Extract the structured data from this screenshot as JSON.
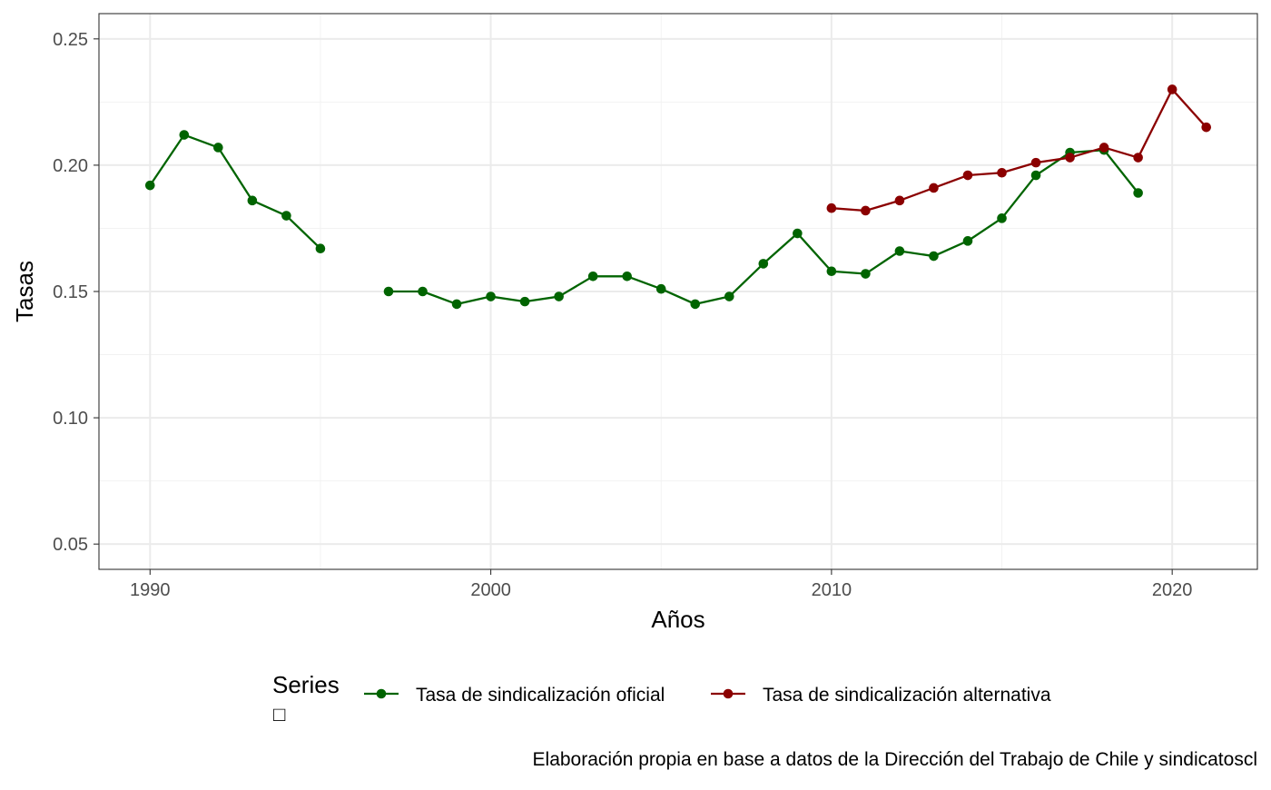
{
  "chart_data": {
    "type": "line",
    "xlabel": "Años",
    "ylabel": "Tasas",
    "xlim": [
      1988.5,
      2022.5
    ],
    "ylim": [
      0.04,
      0.26
    ],
    "x_ticks": [
      1990,
      2000,
      2010,
      2020
    ],
    "x_tick_labels": [
      "1990",
      "2000",
      "2010",
      "2020"
    ],
    "y_ticks": [
      0.05,
      0.1,
      0.15,
      0.2,
      0.25
    ],
    "y_tick_labels": [
      "0.05",
      "0.10",
      "0.15",
      "0.20",
      "0.25"
    ],
    "grid": true,
    "legend": {
      "title": "Series",
      "title_glyph": "□",
      "position": "bottom"
    },
    "caption": "Elaboración propia en base a datos de la Dirección del Trabajo de Chile y sindicatoscl",
    "series": [
      {
        "name": "Tasa de sindicalización oficial",
        "color": "#006400",
        "points": [
          [
            1990,
            0.192
          ],
          [
            1991,
            0.212
          ],
          [
            1992,
            0.207
          ],
          [
            1993,
            0.186
          ],
          [
            1994,
            0.18
          ],
          [
            1995,
            0.167
          ],
          [
            1997,
            0.15
          ],
          [
            1998,
            0.15
          ],
          [
            1999,
            0.145
          ],
          [
            2000,
            0.148
          ],
          [
            2001,
            0.146
          ],
          [
            2002,
            0.148
          ],
          [
            2003,
            0.156
          ],
          [
            2004,
            0.156
          ],
          [
            2005,
            0.151
          ],
          [
            2006,
            0.145
          ],
          [
            2007,
            0.148
          ],
          [
            2008,
            0.161
          ],
          [
            2009,
            0.173
          ],
          [
            2010,
            0.158
          ],
          [
            2011,
            0.157
          ],
          [
            2012,
            0.166
          ],
          [
            2013,
            0.164
          ],
          [
            2014,
            0.17
          ],
          [
            2015,
            0.179
          ],
          [
            2016,
            0.196
          ],
          [
            2017,
            0.205
          ],
          [
            2018,
            0.206
          ],
          [
            2019,
            0.189
          ]
        ]
      },
      {
        "name": "Tasa de sindicalización alternativa",
        "color": "#8B0000",
        "points": [
          [
            2010,
            0.183
          ],
          [
            2011,
            0.182
          ],
          [
            2012,
            0.186
          ],
          [
            2013,
            0.191
          ],
          [
            2014,
            0.196
          ],
          [
            2015,
            0.197
          ],
          [
            2016,
            0.201
          ],
          [
            2017,
            0.203
          ],
          [
            2018,
            0.207
          ],
          [
            2019,
            0.203
          ],
          [
            2020,
            0.23
          ],
          [
            2021,
            0.215
          ]
        ]
      }
    ]
  }
}
